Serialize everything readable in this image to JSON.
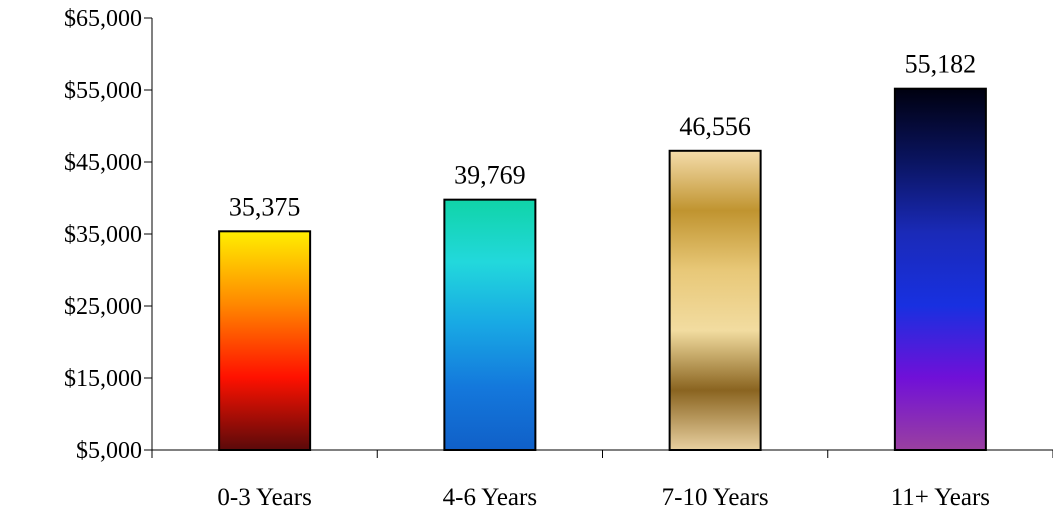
{
  "chart_data": {
    "type": "bar",
    "categories": [
      "0-3 Years",
      "4-6 Years",
      "7-10 Years",
      "11+ Years"
    ],
    "values": [
      35375,
      39769,
      46556,
      55182
    ],
    "data_labels": [
      "35,375",
      "39,769",
      "46,556",
      "55,182"
    ],
    "ylim": [
      5000,
      65000
    ],
    "y_ticks": [
      5000,
      15000,
      25000,
      35000,
      45000,
      55000,
      65000
    ],
    "y_tick_labels": [
      "$5,000",
      "$15,000",
      "$25,000",
      "$35,000",
      "$45,000",
      "$55,000",
      "$65,000"
    ],
    "title": "",
    "xlabel": "",
    "ylabel": "",
    "grid": false,
    "legend": "none",
    "bar_gradients": [
      [
        "#ffee00",
        "#ff8800",
        "#ff1100",
        "#5a0a0a"
      ],
      [
        "#10d4a8",
        "#22d8dc",
        "#18a8e4",
        "#1478dc",
        "#1060c8"
      ],
      [
        "#f4dcaa",
        "#c09430",
        "#e8c878",
        "#f2dca0",
        "#8a6420",
        "#e8d0a0"
      ],
      [
        "#000010",
        "#0a1460",
        "#1a2ab8",
        "#1830e0",
        "#7010d8",
        "#9a40a0"
      ]
    ]
  }
}
